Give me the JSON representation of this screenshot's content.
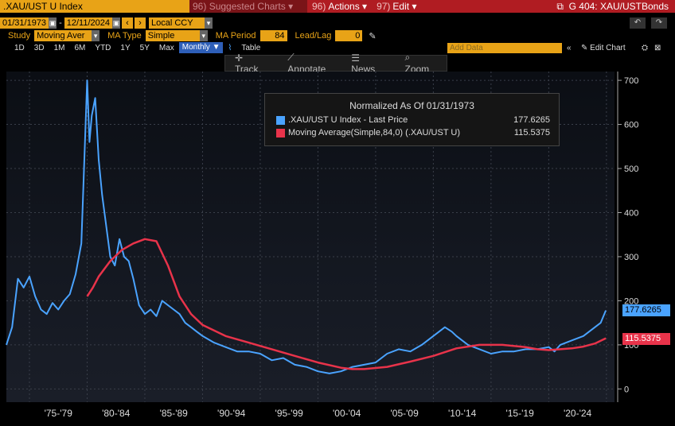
{
  "header": {
    "ticker": ".XAU/UST U Index",
    "suggested": {
      "num": "96",
      "label": "Suggested Charts"
    },
    "actions": {
      "num": "96)",
      "label": "Actions"
    },
    "edit": {
      "num": "97)",
      "label": "Edit"
    },
    "chart_title": "G 404: XAU/USTBonds"
  },
  "controls": {
    "start_date": "01/31/1973",
    "end_date": "12/11/2024",
    "currency": "Local CCY",
    "study_label": "Study",
    "study_value": "Moving Aver",
    "ma_type_label": "MA Type",
    "ma_type_value": "Simple",
    "ma_period_label": "MA Period",
    "ma_period_value": "84",
    "leadlag_label": "Lead/Lag",
    "leadlag_value": "0"
  },
  "periods": [
    "1D",
    "3D",
    "1M",
    "6M",
    "YTD",
    "1Y",
    "5Y",
    "Max"
  ],
  "frequency": "Monthly",
  "table_label": "Table",
  "add_data_placeholder": "Add Data",
  "edit_chart_label": "Edit Chart",
  "toolbar": {
    "track": "Track",
    "annotate": "Annotate",
    "news": "News",
    "zoom": "Zoom"
  },
  "legend": {
    "title": "Normalized As Of 01/31/1973",
    "items": [
      {
        "name": ".XAU/UST U Index - Last Price",
        "value": "177.6265",
        "color": "#4aa3ff"
      },
      {
        "name": "Moving Average(Simple,84,0) (.XAU/UST U)",
        "value": "115.5375",
        "color": "#e8334a"
      }
    ]
  },
  "badges": {
    "last": "177.6265",
    "ma": "115.5375"
  },
  "chart_data": {
    "type": "line",
    "x_tick_labels": [
      "'75-'79",
      "'80-'84",
      "'85-'89",
      "'90-'94",
      "'95-'99",
      "'00-'04",
      "'05-'09",
      "'10-'14",
      "'15-'19",
      "'20-'24"
    ],
    "y_ticks": [
      0,
      100,
      200,
      300,
      400,
      500,
      600,
      700
    ],
    "ylim": [
      -30,
      720
    ],
    "xlim": [
      1973.0,
      2025.7
    ],
    "series": [
      {
        "name": ".XAU/UST U Index - Last Price",
        "color": "#4aa3ff",
        "x": [
          1973.0,
          1973.5,
          1974.0,
          1974.5,
          1975.0,
          1975.5,
          1976.0,
          1976.5,
          1977.0,
          1977.5,
          1978.0,
          1978.5,
          1979.0,
          1979.5,
          1980.0,
          1980.2,
          1980.4,
          1980.7,
          1981.0,
          1981.3,
          1981.6,
          1982.0,
          1982.4,
          1982.8,
          1983.2,
          1983.6,
          1984.0,
          1984.5,
          1985.0,
          1985.5,
          1986.0,
          1986.5,
          1987.0,
          1987.5,
          1988.0,
          1988.5,
          1989.0,
          1989.5,
          1990.0,
          1991.0,
          1992.0,
          1993.0,
          1994.0,
          1995.0,
          1996.0,
          1997.0,
          1998.0,
          1999.0,
          2000.0,
          2001.0,
          2002.0,
          2003.0,
          2004.0,
          2005.0,
          2006.0,
          2007.0,
          2008.0,
          2009.0,
          2010.0,
          2011.0,
          2011.6,
          2012.0,
          2013.0,
          2014.0,
          2015.0,
          2016.0,
          2017.0,
          2018.0,
          2019.0,
          2020.0,
          2020.5,
          2021.0,
          2022.0,
          2023.0,
          2024.0,
          2024.5,
          2024.95
        ],
        "y": [
          100,
          140,
          250,
          230,
          255,
          210,
          180,
          170,
          195,
          180,
          200,
          215,
          260,
          330,
          700,
          560,
          620,
          660,
          520,
          440,
          380,
          300,
          280,
          340,
          300,
          290,
          250,
          190,
          170,
          180,
          165,
          200,
          190,
          180,
          170,
          150,
          140,
          130,
          120,
          105,
          95,
          85,
          85,
          80,
          65,
          70,
          55,
          50,
          40,
          35,
          40,
          50,
          55,
          60,
          80,
          90,
          85,
          100,
          120,
          140,
          130,
          120,
          100,
          90,
          80,
          85,
          85,
          90,
          90,
          95,
          85,
          100,
          110,
          120,
          140,
          150,
          178
        ]
      },
      {
        "name": "Moving Average(Simple,84,0) (.XAU/UST U)",
        "color": "#e8334a",
        "x": [
          1980.0,
          1980.5,
          1981.0,
          1982.0,
          1983.0,
          1984.0,
          1985.0,
          1986.0,
          1987.0,
          1988.0,
          1989.0,
          1990.0,
          1992.0,
          1994.0,
          1996.0,
          1998.0,
          2000.0,
          2002.0,
          2003.0,
          2004.0,
          2006.0,
          2008.0,
          2010.0,
          2012.0,
          2014.0,
          2016.0,
          2018.0,
          2019.0,
          2020.0,
          2021.0,
          2022.0,
          2023.0,
          2024.0,
          2024.95
        ],
        "y": [
          210,
          230,
          255,
          290,
          315,
          330,
          340,
          335,
          280,
          210,
          170,
          145,
          120,
          105,
          90,
          75,
          60,
          48,
          45,
          45,
          50,
          62,
          75,
          92,
          100,
          100,
          95,
          90,
          88,
          90,
          92,
          96,
          103,
          115
        ]
      }
    ]
  }
}
